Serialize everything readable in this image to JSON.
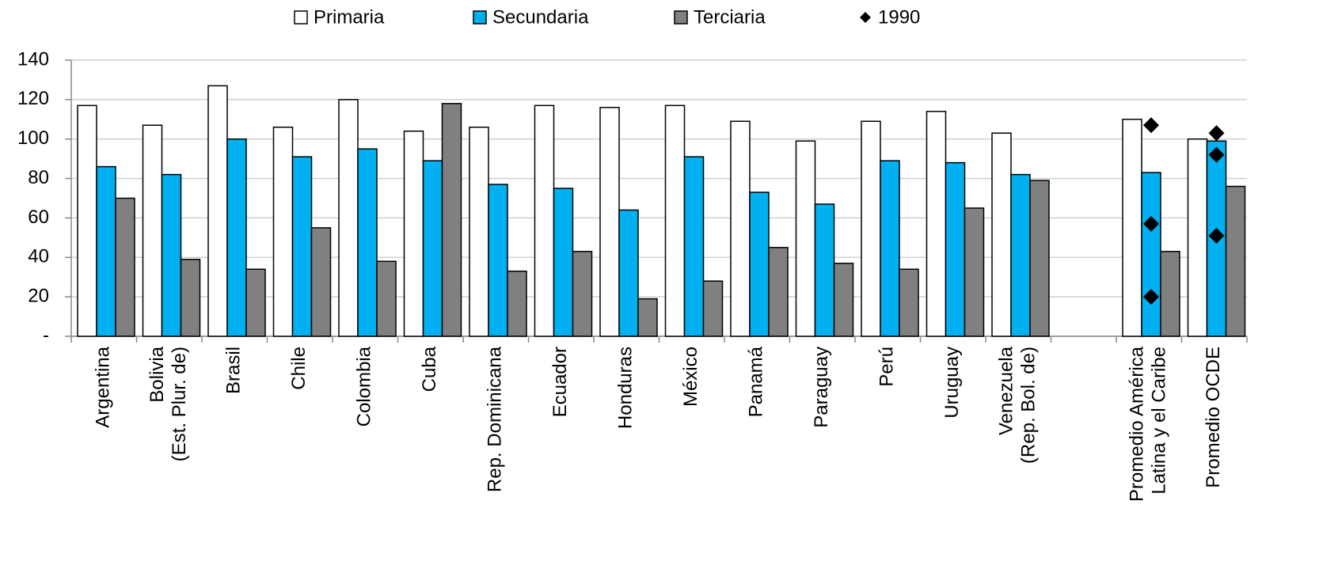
{
  "chart_data": {
    "type": "bar",
    "categories": [
      [
        "Argentina"
      ],
      [
        "Bolivia",
        "(Est. Plur. de)"
      ],
      [
        "Brasil"
      ],
      [
        "Chile"
      ],
      [
        "Colombia"
      ],
      [
        "Cuba"
      ],
      [
        "Rep. Dominicana"
      ],
      [
        "Ecuador"
      ],
      [
        "Honduras"
      ],
      [
        "México"
      ],
      [
        "Panamá"
      ],
      [
        "Paraguay"
      ],
      [
        "Perú"
      ],
      [
        "Uruguay"
      ],
      [
        "Venezuela",
        "(Rep. Bol. de)"
      ],
      null,
      [
        "Promedio América",
        "Latina y el Caribe"
      ],
      [
        "Promedio OCDE"
      ]
    ],
    "series": [
      {
        "name": "Primaria",
        "color": "#ffffff",
        "values": [
          117,
          107,
          127,
          106,
          120,
          104,
          106,
          117,
          116,
          117,
          109,
          99,
          109,
          114,
          103,
          null,
          110,
          100
        ]
      },
      {
        "name": "Secundaria",
        "color": "#00b0f0",
        "values": [
          86,
          82,
          100,
          91,
          95,
          89,
          77,
          75,
          64,
          91,
          73,
          67,
          89,
          88,
          82,
          null,
          83,
          99
        ]
      },
      {
        "name": "Terciaria",
        "color": "#808080",
        "values": [
          70,
          39,
          34,
          55,
          38,
          118,
          33,
          43,
          19,
          28,
          45,
          37,
          34,
          65,
          79,
          null,
          43,
          76
        ]
      },
      {
        "name": "1990",
        "type": "marker",
        "color": "#000000",
        "values": [
          null,
          null,
          null,
          null,
          null,
          null,
          null,
          null,
          null,
          null,
          null,
          null,
          null,
          null,
          null,
          null,
          [
            107,
            57,
            20
          ],
          [
            103,
            92,
            51
          ]
        ]
      }
    ],
    "ylim": [
      0,
      140
    ],
    "yticks": [
      {
        "value": 0,
        "label": "-"
      },
      20,
      40,
      60,
      80,
      100,
      120,
      140
    ],
    "grid": true,
    "legend": "top"
  }
}
